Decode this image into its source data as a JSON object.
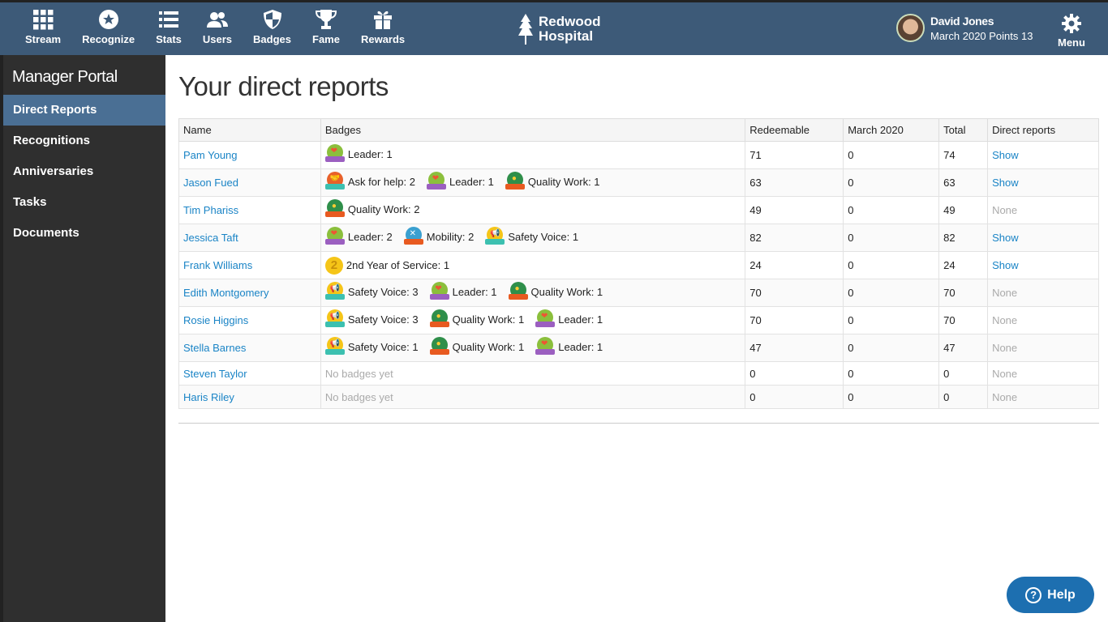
{
  "nav": [
    {
      "label": "Stream",
      "icon": "grid-icon"
    },
    {
      "label": "Recognize",
      "icon": "star-icon"
    },
    {
      "label": "Stats",
      "icon": "list-icon"
    },
    {
      "label": "Users",
      "icon": "users-icon"
    },
    {
      "label": "Badges",
      "icon": "shield-icon"
    },
    {
      "label": "Fame",
      "icon": "trophy-icon"
    },
    {
      "label": "Rewards",
      "icon": "gift-icon"
    }
  ],
  "logo": {
    "line1": "Redwood",
    "line2": "Hospital"
  },
  "user": {
    "name": "David Jones",
    "points": "March 2020 Points 13"
  },
  "menu_label": "Menu",
  "sidebar": {
    "title": "Manager Portal",
    "items": [
      "Direct Reports",
      "Recognitions",
      "Anniversaries",
      "Tasks",
      "Documents"
    ],
    "active": "Direct Reports"
  },
  "page_title": "Your direct reports",
  "table": {
    "headers": [
      "Name",
      "Badges",
      "Redeemable",
      "March 2020",
      "Total",
      "Direct reports"
    ],
    "rows": [
      {
        "name": "Pam Young",
        "badges": [
          {
            "type": "leader",
            "label": "Leader: 1"
          }
        ],
        "redeemable": "71",
        "month": "0",
        "total": "74",
        "direct": "Show"
      },
      {
        "name": "Jason Fued",
        "badges": [
          {
            "type": "help",
            "label": "Ask for help: 2"
          },
          {
            "type": "leader",
            "label": "Leader: 1"
          },
          {
            "type": "quality",
            "label": "Quality Work: 1"
          }
        ],
        "redeemable": "63",
        "month": "0",
        "total": "63",
        "direct": "Show"
      },
      {
        "name": "Tim Phariss",
        "badges": [
          {
            "type": "quality",
            "label": "Quality Work: 2"
          }
        ],
        "redeemable": "49",
        "month": "0",
        "total": "49",
        "direct": "None"
      },
      {
        "name": "Jessica Taft",
        "badges": [
          {
            "type": "leader",
            "label": "Leader: 2"
          },
          {
            "type": "mobility",
            "label": "Mobility: 2"
          },
          {
            "type": "safety",
            "label": "Safety Voice: 1"
          }
        ],
        "redeemable": "82",
        "month": "0",
        "total": "82",
        "direct": "Show"
      },
      {
        "name": "Frank Williams",
        "badges": [
          {
            "type": "service",
            "label": "2nd Year of Service: 1",
            "glyph": "2"
          }
        ],
        "redeemable": "24",
        "month": "0",
        "total": "24",
        "direct": "Show"
      },
      {
        "name": "Edith Montgomery",
        "badges": [
          {
            "type": "safety",
            "label": "Safety Voice: 3"
          },
          {
            "type": "leader",
            "label": "Leader: 1"
          },
          {
            "type": "quality",
            "label": "Quality Work: 1"
          }
        ],
        "redeemable": "70",
        "month": "0",
        "total": "70",
        "direct": "None"
      },
      {
        "name": "Rosie Higgins",
        "badges": [
          {
            "type": "safety",
            "label": "Safety Voice: 3"
          },
          {
            "type": "quality",
            "label": "Quality Work: 1"
          },
          {
            "type": "leader",
            "label": "Leader: 1"
          }
        ],
        "redeemable": "70",
        "month": "0",
        "total": "70",
        "direct": "None"
      },
      {
        "name": "Stella Barnes",
        "badges": [
          {
            "type": "safety",
            "label": "Safety Voice: 1"
          },
          {
            "type": "quality",
            "label": "Quality Work: 1"
          },
          {
            "type": "leader",
            "label": "Leader: 1"
          }
        ],
        "redeemable": "47",
        "month": "0",
        "total": "47",
        "direct": "None"
      },
      {
        "name": "Steven Taylor",
        "badges": [],
        "no_badges": "No badges yet",
        "redeemable": "0",
        "month": "0",
        "total": "0",
        "direct": "None"
      },
      {
        "name": "Haris Riley",
        "badges": [],
        "no_badges": "No badges yet",
        "redeemable": "0",
        "month": "0",
        "total": "0",
        "direct": "None"
      }
    ]
  },
  "help_label": "Help",
  "colors": {
    "header": "#3d5a78",
    "sidebar": "#2f2f2f",
    "active": "#4a6f94",
    "link": "#1a84c6",
    "help": "#1d6fb0"
  }
}
